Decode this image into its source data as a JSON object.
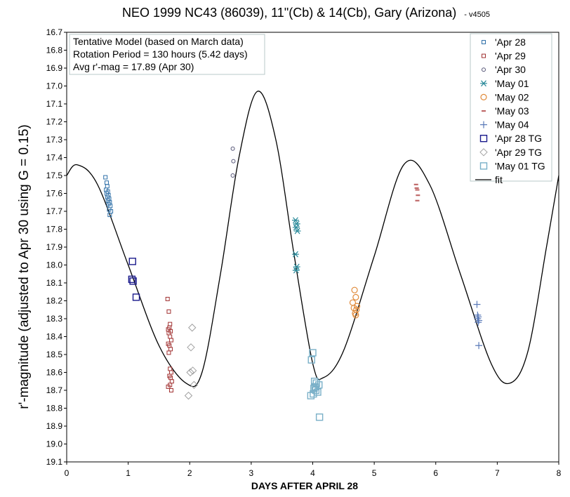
{
  "chart_data": {
    "type": "scatter",
    "title": "NEO 1999 NC43 (86039), 11\"(Cb) & 14(Cb), Gary (Arizona)",
    "title_suffix": "- v4505",
    "xlabel": "DAYS AFTER APRIL 28",
    "ylabel": "r'-magnitude  (adjusted to Apr 30 using G = 0.15)",
    "xlim": [
      0,
      8
    ],
    "ylim": [
      19.1,
      16.7
    ],
    "y_inverted": true,
    "x_ticks": [
      "0",
      "1",
      "2",
      "3",
      "4",
      "5",
      "6",
      "7",
      "8"
    ],
    "y_ticks": [
      "16.7",
      "16.8",
      "16.9",
      "17.0",
      "17.1",
      "17.2",
      "17.3",
      "17.4",
      "17.5",
      "17.6",
      "17.7",
      "17.8",
      "17.9",
      "18.0",
      "18.1",
      "18.2",
      "18.3",
      "18.4",
      "18.5",
      "18.6",
      "18.7",
      "18.8",
      "18.9",
      "19.0",
      "19.1"
    ],
    "grid": false,
    "legend_position": "top-right",
    "annotation": [
      "Tentative Model (based on March data)",
      "Rotation Period = 130 hours (5.42 days)",
      "Avg r'-mag = 17.89 (Apr 30)"
    ],
    "series": [
      {
        "name": "'Apr 28",
        "marker": "square-small",
        "color": "#2e6fa8",
        "x": [
          0.63,
          0.65,
          0.66,
          0.64,
          0.67,
          0.65,
          0.68,
          0.66,
          0.69,
          0.67,
          0.7,
          0.68,
          0.71,
          0.69,
          0.72,
          0.7
        ],
        "y": [
          17.51,
          17.54,
          17.56,
          17.58,
          17.59,
          17.6,
          17.61,
          17.62,
          17.63,
          17.64,
          17.65,
          17.66,
          17.67,
          17.69,
          17.7,
          17.72
        ]
      },
      {
        "name": "'Apr 29",
        "marker": "square-small",
        "color": "#a03030",
        "x": [
          1.64,
          1.66,
          1.68,
          1.65,
          1.67,
          1.69,
          1.66,
          1.68,
          1.7,
          1.65,
          1.67,
          1.69,
          1.66,
          1.68,
          1.7,
          1.67,
          1.69,
          1.71,
          1.65,
          1.68,
          1.7
        ],
        "y": [
          18.19,
          18.26,
          18.33,
          18.36,
          18.35,
          18.37,
          18.38,
          18.4,
          18.42,
          18.44,
          18.45,
          18.47,
          18.49,
          18.58,
          18.6,
          18.62,
          18.63,
          18.65,
          18.68,
          18.67,
          18.7
        ]
      },
      {
        "name": "'Apr 30",
        "marker": "circle-small",
        "color": "#555577",
        "x": [
          2.7,
          2.71,
          2.7
        ],
        "y": [
          17.35,
          17.42,
          17.5
        ]
      },
      {
        "name": "'May 01",
        "marker": "asterisk",
        "color": "#2a8a9a",
        "x": [
          3.72,
          3.74,
          3.73,
          3.75,
          3.72,
          3.74,
          3.73
        ],
        "y": [
          17.75,
          17.77,
          17.79,
          17.81,
          17.94,
          18.01,
          18.03
        ]
      },
      {
        "name": "'May 02",
        "marker": "circle",
        "color": "#e08a3a",
        "x": [
          4.68,
          4.7,
          4.65,
          4.72,
          4.67,
          4.71,
          4.69,
          4.7
        ],
        "y": [
          18.14,
          18.18,
          18.21,
          18.23,
          18.24,
          18.25,
          18.27,
          18.28
        ]
      },
      {
        "name": "'May 03",
        "marker": "dash",
        "color": "#c06a6a",
        "x": [
          5.68,
          5.69,
          5.7,
          5.71,
          5.7
        ],
        "y": [
          17.55,
          17.57,
          17.58,
          17.61,
          17.64
        ]
      },
      {
        "name": "'May 04",
        "marker": "plus",
        "color": "#5a7ab8",
        "x": [
          6.67,
          6.68,
          6.69,
          6.68,
          6.7,
          6.69,
          6.7
        ],
        "y": [
          18.22,
          18.28,
          18.29,
          18.3,
          18.31,
          18.32,
          18.45
        ]
      },
      {
        "name": "'Apr 28 TG",
        "marker": "square-large",
        "color": "#1a1a8c",
        "x": [
          1.07,
          1.06,
          1.08,
          1.13
        ],
        "y": [
          17.98,
          18.08,
          18.09,
          18.18
        ]
      },
      {
        "name": "'Apr 29 TG",
        "marker": "diamond",
        "color": "#a0a0a0",
        "x": [
          2.04,
          2.02,
          2.05,
          2.01,
          2.07,
          1.98
        ],
        "y": [
          18.35,
          18.46,
          18.59,
          18.6,
          18.67,
          18.73
        ]
      },
      {
        "name": "'May 01 TG",
        "marker": "square-large",
        "color": "#7ab0c8",
        "x": [
          3.98,
          4.0,
          4.03,
          4.06,
          4.1,
          4.02,
          4.05,
          4.08,
          3.97,
          4.01,
          4.04,
          4.11
        ],
        "y": [
          18.53,
          18.49,
          18.65,
          18.66,
          18.67,
          18.69,
          18.7,
          18.71,
          18.73,
          18.72,
          18.68,
          18.85
        ]
      },
      {
        "name": "fit",
        "marker": "line",
        "color": "#000000",
        "x": [
          0.0,
          0.17,
          0.5,
          1.0,
          1.5,
          1.94,
          2.2,
          2.5,
          2.8,
          3.1,
          3.4,
          3.7,
          4.0,
          4.17,
          4.5,
          5.0,
          5.48,
          5.9,
          6.4,
          6.9,
          7.21,
          7.5,
          7.8,
          8.0
        ],
        "y": [
          17.5,
          17.44,
          17.55,
          18.0,
          18.45,
          18.66,
          18.6,
          18.05,
          17.4,
          17.03,
          17.3,
          17.95,
          18.55,
          18.63,
          18.48,
          17.95,
          17.44,
          17.55,
          18.05,
          18.55,
          18.66,
          18.48,
          17.9,
          17.5
        ]
      }
    ]
  }
}
